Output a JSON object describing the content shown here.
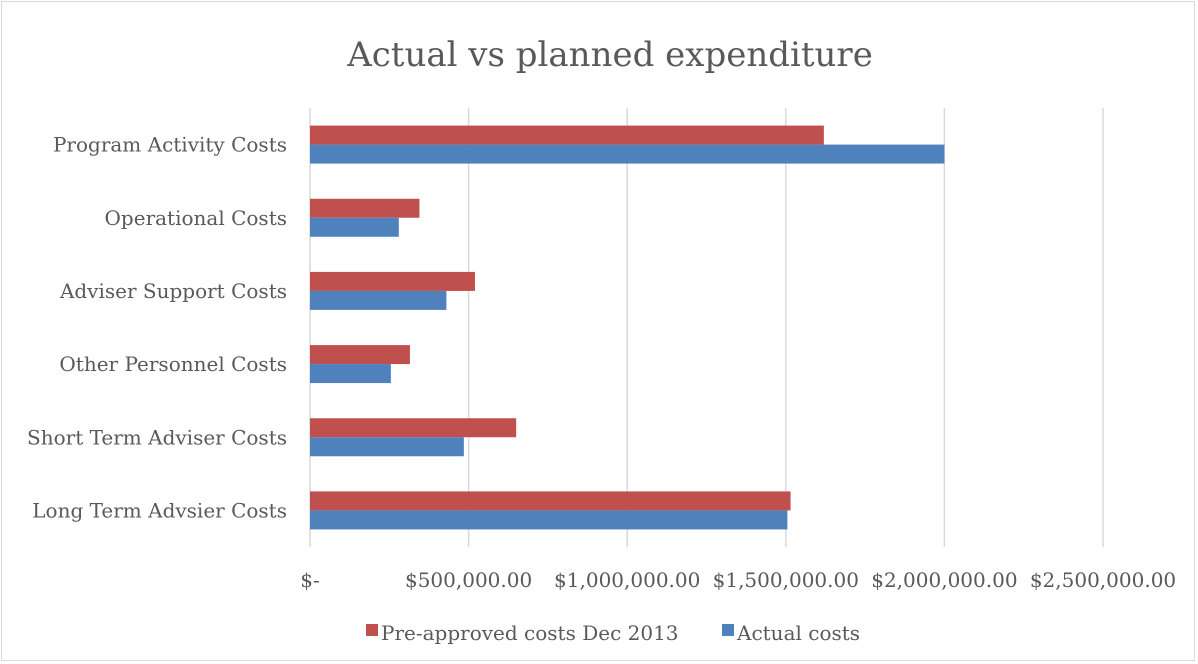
{
  "chart_data": {
    "type": "bar",
    "orientation": "horizontal",
    "title": "Actual vs planned expenditure",
    "xlabel": "",
    "ylabel": "",
    "categories": [
      "Program Activity Costs",
      "Operational Costs",
      "Adviser Support Costs",
      "Other Personnel Costs",
      "Short Term Adviser Costs",
      "Long Term Advsier Costs"
    ],
    "series": [
      {
        "name": "Pre-approved costs Dec 2013",
        "color": "#c0504d",
        "values": [
          1620000,
          345000,
          520000,
          315000,
          650000,
          1515000
        ]
      },
      {
        "name": "Actual costs",
        "color": "#4f81bd",
        "values": [
          2000000,
          280000,
          430000,
          255000,
          485000,
          1505000
        ]
      }
    ],
    "xlim": [
      0,
      2500000
    ],
    "x_ticks": [
      0,
      500000,
      1000000,
      1500000,
      2000000,
      2500000
    ],
    "x_tick_labels": [
      "$-",
      "$500,000.00",
      "$1,000,000.00",
      "$1,500,000.00",
      "$2,000,000.00",
      "$2,500,000.00"
    ],
    "grid": true,
    "legend_position": "bottom"
  }
}
